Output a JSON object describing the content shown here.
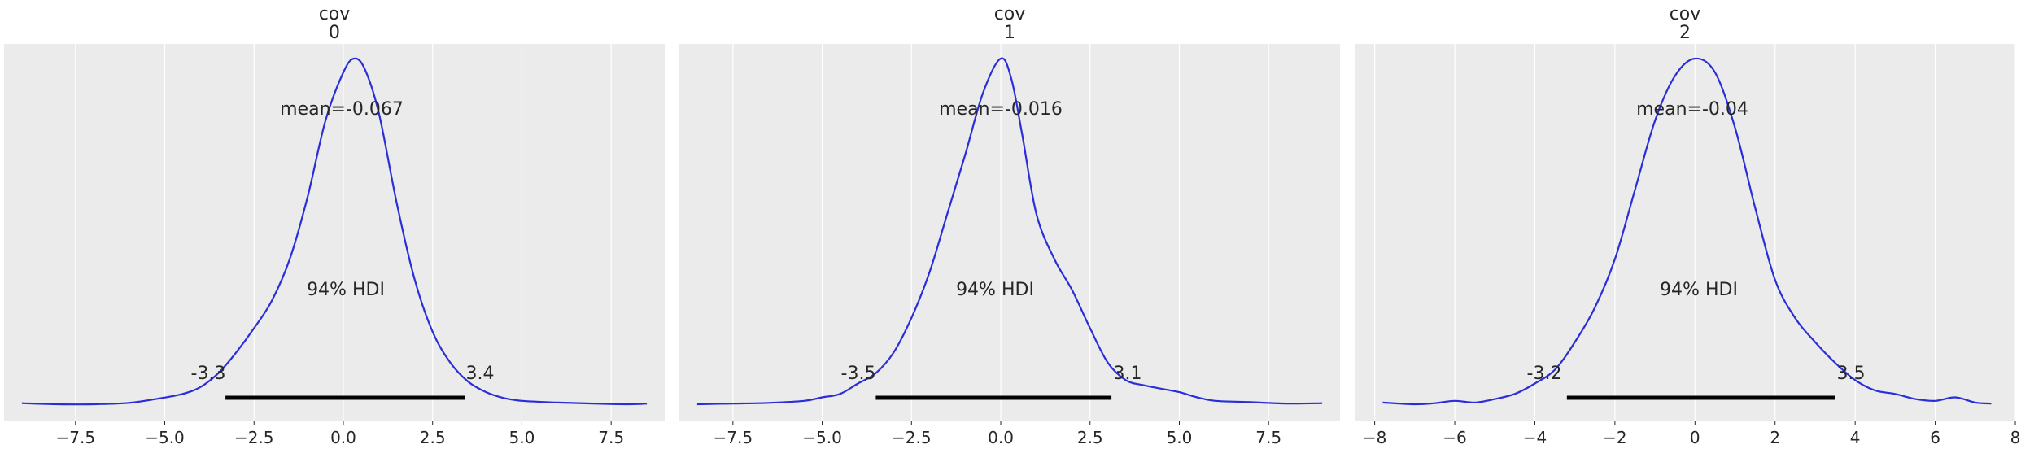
{
  "colors": {
    "panel_bg": "#EBEBEB",
    "grid": "#FFFFFF",
    "kde_line": "#2A2ED9",
    "hdi_bar": "#000000",
    "text": "#262626"
  },
  "chart_data": [
    {
      "type": "line",
      "title_lines": [
        "cov",
        "0"
      ],
      "xlim": [
        -9.5,
        9.0
      ],
      "xticks": [
        -7.5,
        -5.0,
        -2.5,
        0.0,
        2.5,
        5.0,
        7.5
      ],
      "xtick_labels": [
        "−7.5",
        "−5.0",
        "−2.5",
        "0.0",
        "2.5",
        "5.0",
        "7.5"
      ],
      "grid": true,
      "kde": {
        "x": [
          -9.0,
          -8.0,
          -7.0,
          -6.0,
          -5.2,
          -4.5,
          -4.0,
          -3.5,
          -3.0,
          -2.5,
          -2.0,
          -1.5,
          -1.0,
          -0.5,
          0.0,
          0.3,
          0.6,
          1.0,
          1.5,
          2.0,
          2.5,
          3.0,
          3.5,
          4.0,
          4.5,
          5.0,
          6.0,
          7.0,
          8.0,
          8.5
        ],
        "y": [
          0.003,
          0.0,
          0.0,
          0.004,
          0.016,
          0.03,
          0.05,
          0.09,
          0.15,
          0.22,
          0.3,
          0.42,
          0.6,
          0.82,
          0.96,
          1.0,
          0.97,
          0.84,
          0.58,
          0.36,
          0.21,
          0.12,
          0.065,
          0.035,
          0.018,
          0.01,
          0.005,
          0.002,
          0.0,
          0.002
        ]
      },
      "mean_label": "mean=-0.067",
      "hdi": {
        "label": "94% HDI",
        "low": -3.3,
        "high": 3.4,
        "low_label": "-3.3",
        "high_label": "3.4"
      }
    },
    {
      "type": "line",
      "title_lines": [
        "cov",
        "1"
      ],
      "xlim": [
        -9.0,
        9.5
      ],
      "xticks": [
        -7.5,
        -5.0,
        -2.5,
        0.0,
        2.5,
        5.0,
        7.5
      ],
      "xtick_labels": [
        "−7.5",
        "−5.0",
        "−2.5",
        "0.0",
        "2.5",
        "5.0",
        "7.5"
      ],
      "grid": true,
      "kde": {
        "x": [
          -8.5,
          -7.5,
          -6.5,
          -5.5,
          -5.0,
          -4.5,
          -4.0,
          -3.5,
          -3.0,
          -2.5,
          -2.0,
          -1.5,
          -1.0,
          -0.5,
          0.0,
          0.3,
          0.6,
          1.0,
          1.5,
          2.0,
          2.5,
          3.0,
          3.5,
          4.0,
          4.5,
          5.0,
          5.5,
          6.0,
          7.0,
          8.0,
          9.0
        ],
        "y": [
          0.0,
          0.002,
          0.004,
          0.01,
          0.02,
          0.03,
          0.06,
          0.09,
          0.15,
          0.25,
          0.38,
          0.55,
          0.72,
          0.9,
          1.0,
          0.94,
          0.78,
          0.55,
          0.42,
          0.33,
          0.22,
          0.12,
          0.07,
          0.055,
          0.045,
          0.035,
          0.02,
          0.01,
          0.006,
          0.002,
          0.003
        ]
      },
      "mean_label": "mean=-0.016",
      "hdi": {
        "label": "94% HDI",
        "low": -3.5,
        "high": 3.1,
        "low_label": "-3.5",
        "high_label": "3.1"
      }
    },
    {
      "type": "line",
      "title_lines": [
        "cov",
        "2"
      ],
      "xlim": [
        -8.5,
        8.0
      ],
      "xticks": [
        -8,
        -6,
        -4,
        -2,
        0,
        2,
        4,
        6,
        8
      ],
      "xtick_labels": [
        "−8",
        "−6",
        "−4",
        "−2",
        "0",
        "2",
        "4",
        "6",
        "8"
      ],
      "grid": true,
      "kde": {
        "x": [
          -7.8,
          -7.0,
          -6.5,
          -6.0,
          -5.5,
          -5.0,
          -4.5,
          -4.0,
          -3.5,
          -3.0,
          -2.5,
          -2.0,
          -1.5,
          -1.0,
          -0.5,
          0.0,
          0.5,
          1.0,
          1.5,
          2.0,
          2.5,
          3.0,
          3.5,
          4.0,
          4.5,
          5.0,
          5.5,
          6.0,
          6.5,
          7.0,
          7.4
        ],
        "y": [
          0.005,
          0.0,
          0.003,
          0.01,
          0.005,
          0.015,
          0.03,
          0.06,
          0.1,
          0.18,
          0.28,
          0.42,
          0.62,
          0.82,
          0.95,
          1.0,
          0.96,
          0.8,
          0.57,
          0.36,
          0.25,
          0.18,
          0.12,
          0.07,
          0.04,
          0.03,
          0.015,
          0.01,
          0.02,
          0.005,
          0.002
        ]
      },
      "mean_label": "mean=-0.04",
      "hdi": {
        "label": "94% HDI",
        "low": -3.2,
        "high": 3.5,
        "low_label": "-3.2",
        "high_label": "3.5"
      }
    }
  ]
}
